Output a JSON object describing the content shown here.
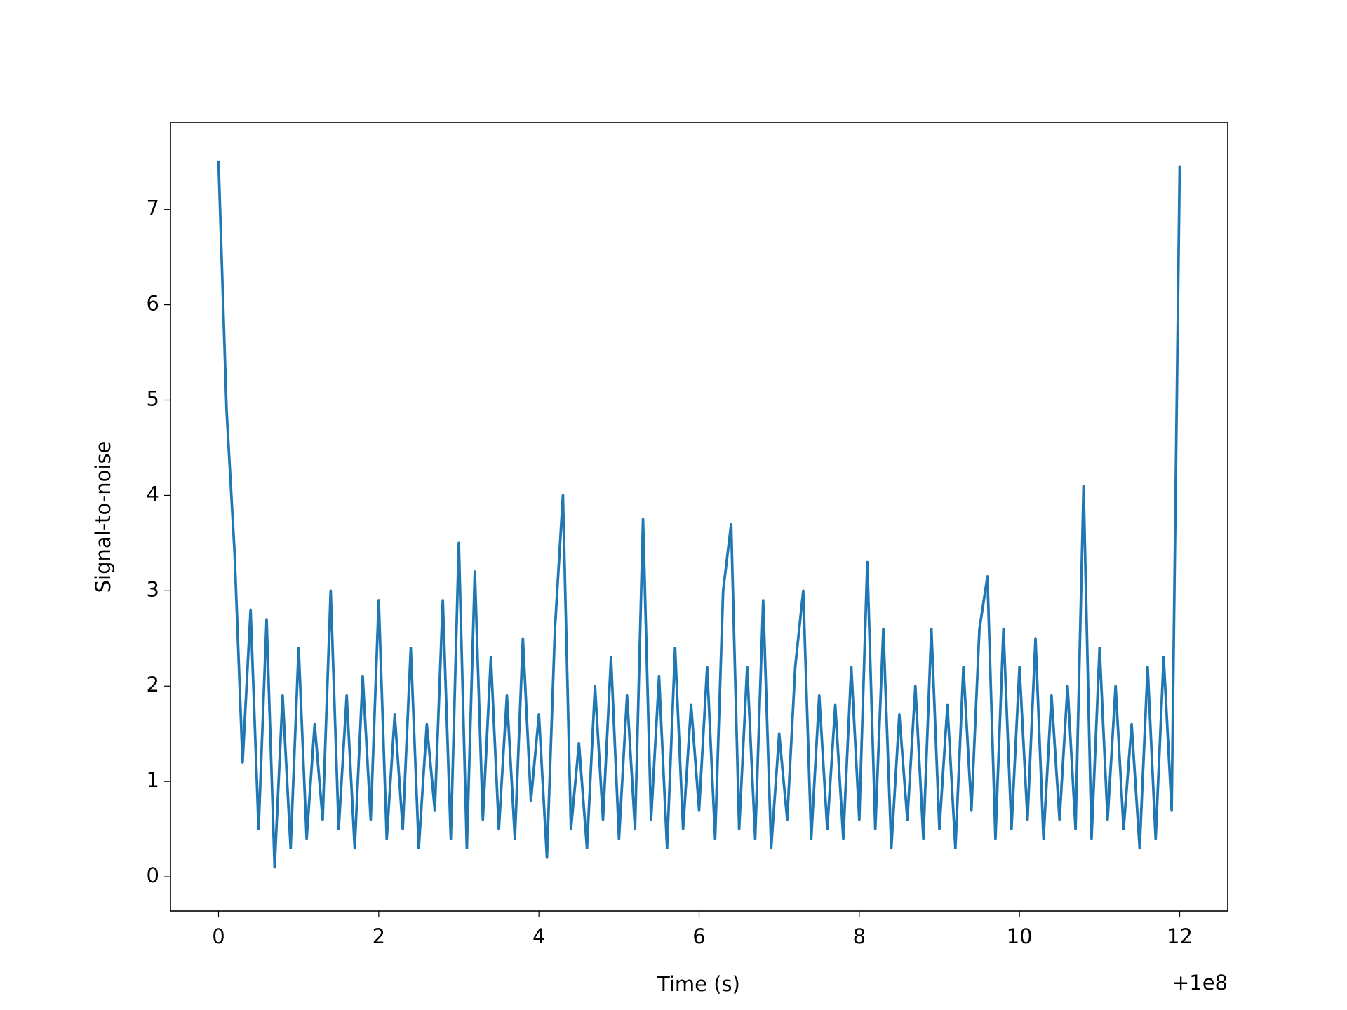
{
  "chart_data": {
    "type": "line",
    "x_label": "Time (s)",
    "y_label": "Signal-to-noise",
    "x_offset_label": "+1e8",
    "xlim": [
      -0.6,
      12.6
    ],
    "xticks": [
      0,
      2,
      4,
      6,
      8,
      10,
      12
    ],
    "ylim": [
      -0.36,
      7.91
    ],
    "yticks": [
      0,
      1,
      2,
      3,
      4,
      5,
      6,
      7
    ],
    "grid": false,
    "x": [
      0,
      0.1,
      0.2,
      0.3,
      0.4,
      0.5,
      0.6,
      0.7,
      0.8,
      0.9,
      1,
      1.1,
      1.2,
      1.3,
      1.4,
      1.5,
      1.6,
      1.7,
      1.8,
      1.9,
      2,
      2.1,
      2.2,
      2.3,
      2.4,
      2.5,
      2.6,
      2.7,
      2.8,
      2.9,
      3,
      3.1,
      3.2,
      3.3,
      3.4,
      3.5,
      3.6,
      3.7,
      3.8,
      3.9,
      4,
      4.1,
      4.2,
      4.3,
      4.4,
      4.5,
      4.6,
      4.7,
      4.8,
      4.9,
      5,
      5.1,
      5.2,
      5.3,
      5.4,
      5.5,
      5.6,
      5.7,
      5.8,
      5.9,
      6,
      6.1,
      6.2,
      6.3,
      6.4,
      6.5,
      6.6,
      6.7,
      6.8,
      6.9,
      7,
      7.1,
      7.2,
      7.3,
      7.4,
      7.5,
      7.6,
      7.7,
      7.8,
      7.9,
      8,
      8.1,
      8.2,
      8.3,
      8.4,
      8.5,
      8.6,
      8.7,
      8.8,
      8.9,
      9,
      9.1,
      9.2,
      9.3,
      9.4,
      9.5,
      9.6,
      9.7,
      9.8,
      9.9,
      10,
      10.1,
      10.2,
      10.3,
      10.4,
      10.5,
      10.6,
      10.7,
      10.8,
      10.9,
      11,
      11.1,
      11.2,
      11.3,
      11.4,
      11.5,
      11.6,
      11.7,
      11.8,
      11.9,
      12
    ],
    "series": [
      {
        "color": "#1f77b4",
        "values": [
          7.5,
          4.9,
          3.4,
          1.2,
          2.8,
          0.5,
          2.7,
          0.1,
          1.9,
          0.3,
          2.4,
          0.4,
          1.6,
          0.6,
          3.0,
          0.5,
          1.9,
          0.3,
          2.1,
          0.6,
          2.9,
          0.4,
          1.7,
          0.5,
          2.4,
          0.3,
          1.6,
          0.7,
          2.9,
          0.4,
          3.5,
          0.3,
          3.2,
          0.6,
          2.3,
          0.5,
          1.9,
          0.4,
          2.5,
          0.8,
          1.7,
          0.2,
          2.6,
          4.0,
          0.5,
          1.4,
          0.3,
          2.0,
          0.6,
          2.3,
          0.4,
          1.9,
          0.5,
          3.75,
          0.6,
          2.1,
          0.3,
          2.4,
          0.5,
          1.8,
          0.7,
          2.2,
          0.4,
          3.0,
          3.7,
          0.5,
          2.2,
          0.4,
          2.9,
          0.3,
          1.5,
          0.6,
          2.2,
          3.0,
          0.4,
          1.9,
          0.5,
          1.8,
          0.4,
          2.2,
          0.6,
          3.3,
          0.5,
          2.6,
          0.3,
          1.7,
          0.6,
          2.0,
          0.4,
          2.6,
          0.5,
          1.8,
          0.3,
          2.2,
          0.7,
          2.6,
          3.15,
          0.4,
          2.6,
          0.5,
          2.2,
          0.6,
          2.5,
          0.4,
          1.9,
          0.6,
          2.0,
          0.5,
          4.1,
          0.4,
          2.4,
          0.6,
          2.0,
          0.5,
          1.6,
          0.3,
          2.2,
          0.4,
          2.3,
          0.7,
          7.45
        ]
      }
    ]
  }
}
